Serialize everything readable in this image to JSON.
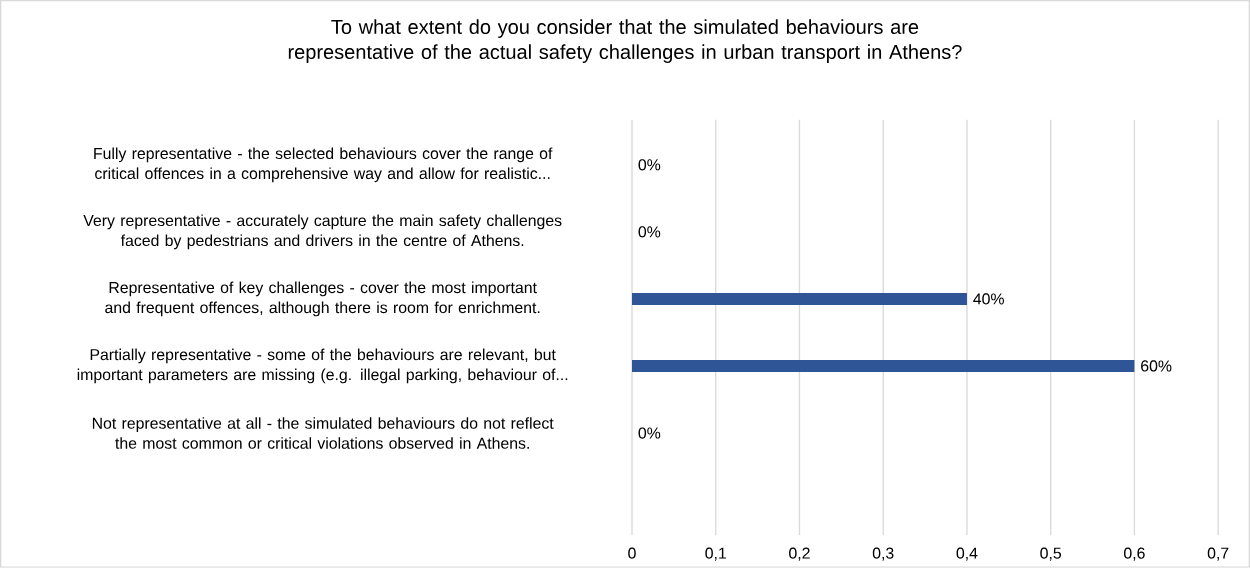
{
  "chart_data": {
    "type": "bar",
    "orientation": "horizontal",
    "title": "To what extent do you consider that the simulated behaviours are representative of the actual safety challenges in urban transport in Athens?",
    "categories": [
      "Fully representative - the selected behaviours cover the range of critical offences in a comprehensive way and allow for realistic...",
      "Very representative - accurately capture the main safety challenges faced by pedestrians and drivers in the centre of Athens.",
      "Representative of key challenges - cover the most important and frequent offences, although there is room for enrichment.",
      "Partially representative - some of the behaviours are relevant, but important parameters are missing (e.g. illegal parking, behaviour of...",
      "Not representative at all - the simulated behaviours do not reflect the most common or critical violations observed in Athens."
    ],
    "values": [
      0,
      0,
      0.4,
      0.6,
      0
    ],
    "value_labels": [
      "0%",
      "0%",
      "40%",
      "60%",
      "0%"
    ],
    "color": "#2f5597",
    "xlim": [
      0,
      0.7
    ],
    "xticks": [
      0,
      {
        "value": 0.1,
        "label": "0,1"
      },
      {
        "value": 0.2,
        "label": "0,2"
      },
      {
        "value": 0.3,
        "label": "0,3"
      },
      {
        "value": 0.4,
        "label": "0,4"
      },
      {
        "value": 0.5,
        "label": "0,5"
      },
      {
        "value": 0.6,
        "label": "0,6"
      },
      {
        "value": 0.7,
        "label": "0,7"
      }
    ],
    "grid": "x"
  }
}
